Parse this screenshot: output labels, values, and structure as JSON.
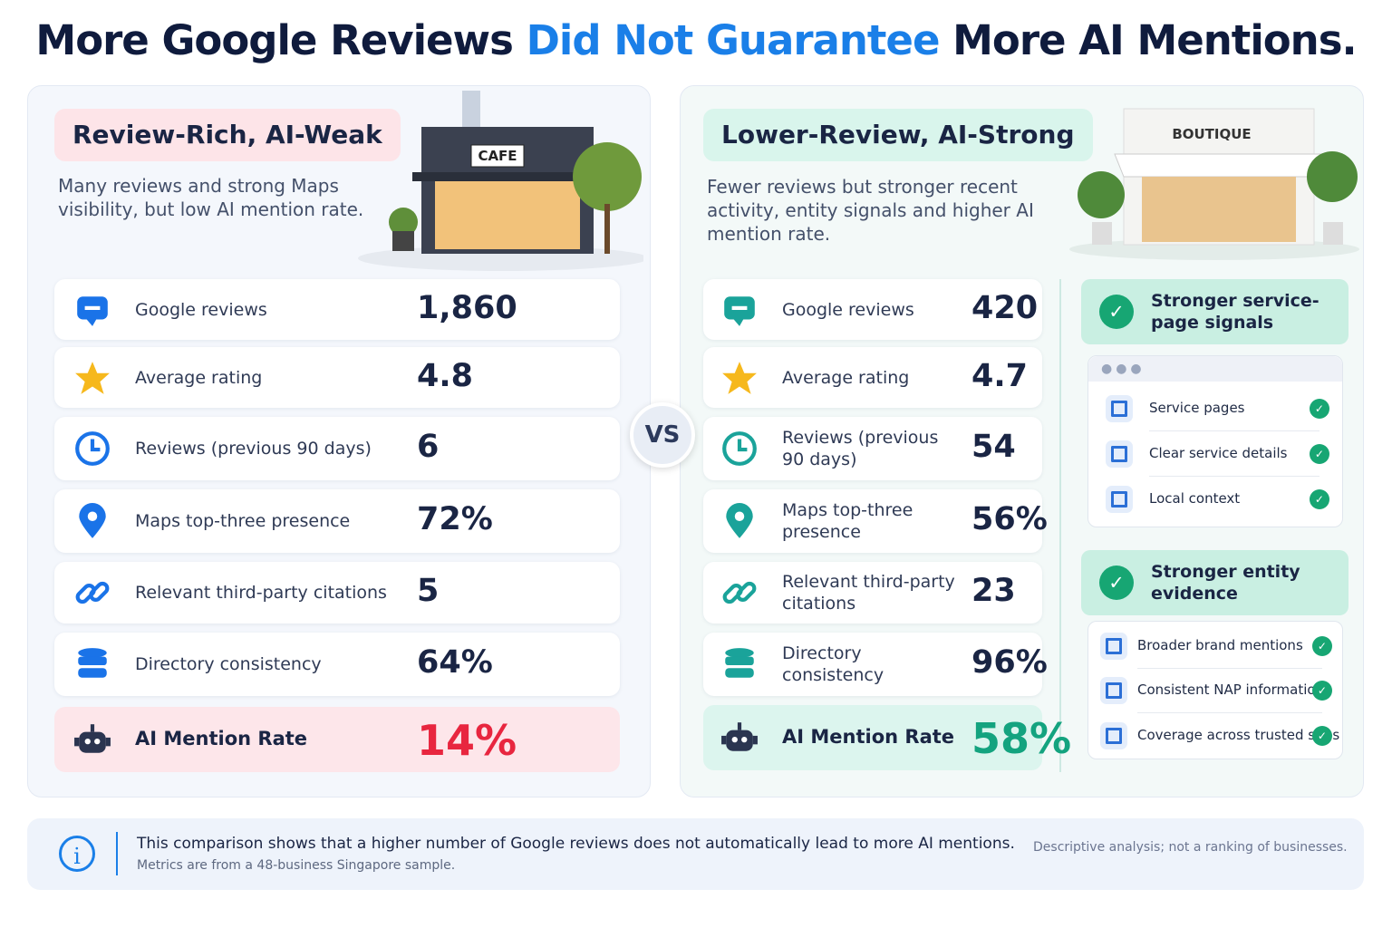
{
  "title": {
    "before": "More Google Reviews",
    "highlight": "Did Not Guarantee",
    "after": "More AI Mentions."
  },
  "left": {
    "tag": "Review-Rich, AI-Weak",
    "description": "Many reviews and strong Maps visibility, but low AI mention rate.",
    "sign": "CAFE",
    "metrics": [
      {
        "label": "Google reviews",
        "value": "1,860"
      },
      {
        "label": "Average rating",
        "value": "4.8"
      },
      {
        "label": "Reviews (previous 90 days)",
        "value": "6"
      },
      {
        "label": "Maps top-three presence",
        "value": "72%"
      },
      {
        "label": "Relevant third-party citations",
        "value": "5"
      },
      {
        "label": "Directory consistency",
        "value": "64%"
      }
    ],
    "ai_rate": {
      "label": "AI Mention Rate",
      "value": "14%"
    }
  },
  "vs": "VS",
  "right": {
    "tag": "Lower-Review, AI-Strong",
    "description": "Fewer reviews but stronger recent activity, entity signals and higher AI mention rate.",
    "sign": "BOUTIQUE",
    "metrics": [
      {
        "label": "Google reviews",
        "value": "420"
      },
      {
        "label": "Average rating",
        "value": "4.7"
      },
      {
        "label": "Reviews (previous 90 days)",
        "value": "54"
      },
      {
        "label": "Maps top-three presence",
        "value": "56%"
      },
      {
        "label": "Relevant third-party citations",
        "value": "23"
      },
      {
        "label": "Directory consistency",
        "value": "96%"
      }
    ],
    "ai_rate": {
      "label": "AI Mention Rate",
      "value": "58%"
    },
    "signals": [
      {
        "title": "Stronger service-page signals",
        "items": [
          "Service pages",
          "Clear service details",
          "Local context"
        ]
      },
      {
        "title": "Stronger entity evidence",
        "items": [
          "Broader brand mentions",
          "Consistent NAP information",
          "Coverage across trusted sites"
        ]
      }
    ]
  },
  "footer": {
    "main": "This comparison shows that a higher number of Google reviews does not automatically lead to more AI mentions.",
    "sub": "Metrics are from a 48-business Singapore sample.",
    "note": "Descriptive analysis; not a ranking of businesses."
  }
}
